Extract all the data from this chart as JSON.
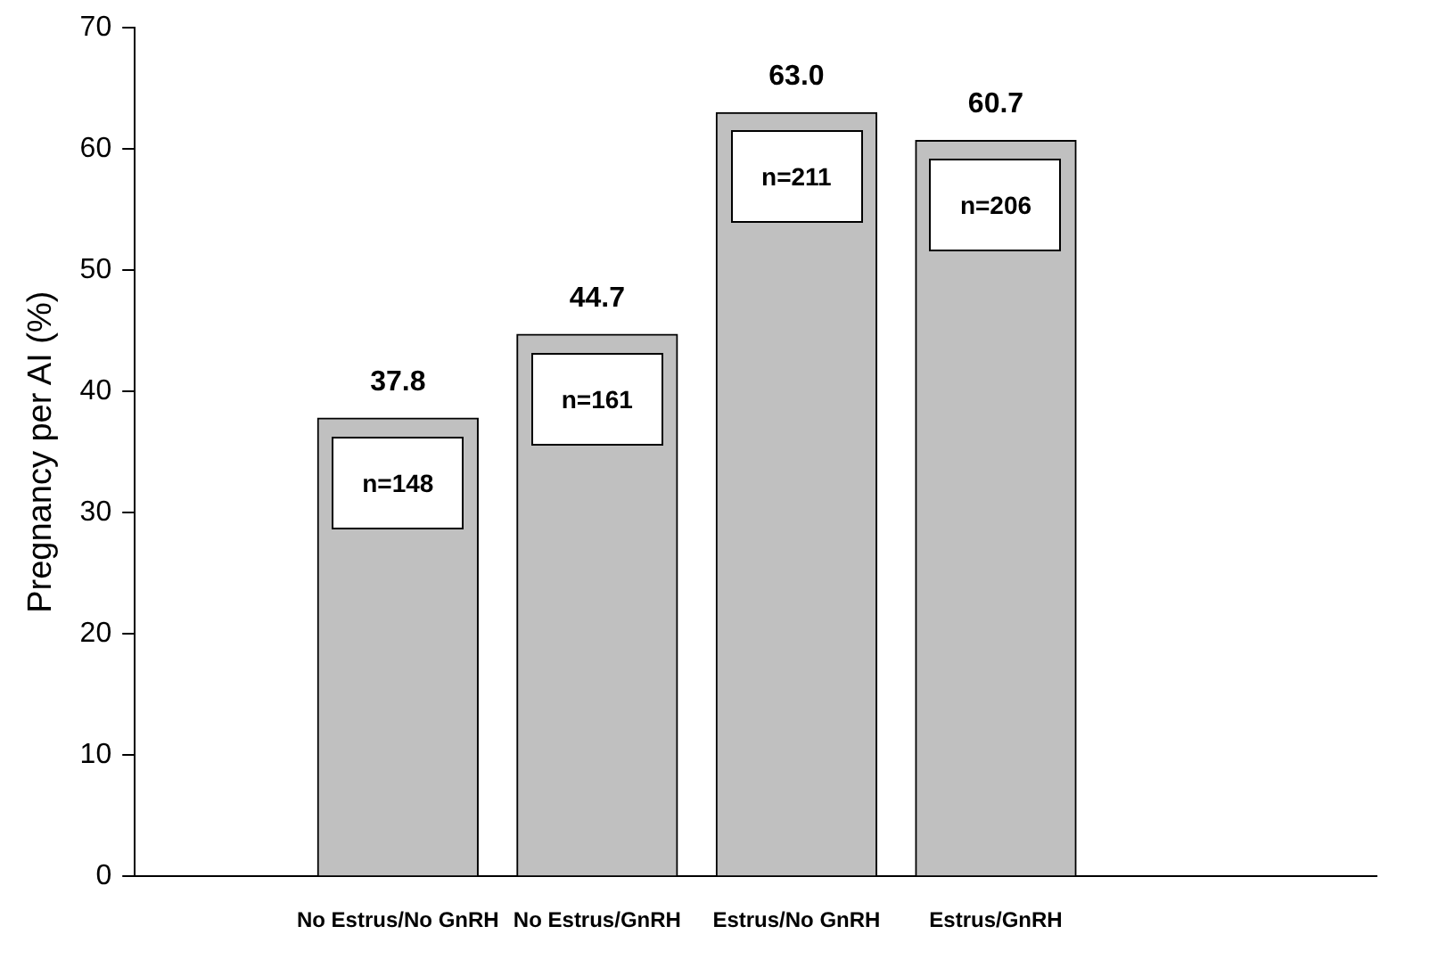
{
  "chart_data": {
    "type": "bar",
    "ylabel": "Pregnancy per AI (%)",
    "categories": [
      "No Estrus/No GnRH",
      "No Estrus/GnRH",
      "Estrus/No GnRH",
      "Estrus/GnRH"
    ],
    "values": [
      37.8,
      44.7,
      63.0,
      60.7
    ],
    "color": "#c0c0c0",
    "value_labels": [
      "37.8",
      "44.7",
      "63.0",
      "60.7"
    ],
    "ylim": [
      0,
      70
    ],
    "yticks": [
      0,
      10,
      20,
      30,
      40,
      50,
      60,
      70
    ],
    "grid": false,
    "annotations": [
      "n=148",
      "n=161",
      "n=211",
      "n=206"
    ]
  }
}
